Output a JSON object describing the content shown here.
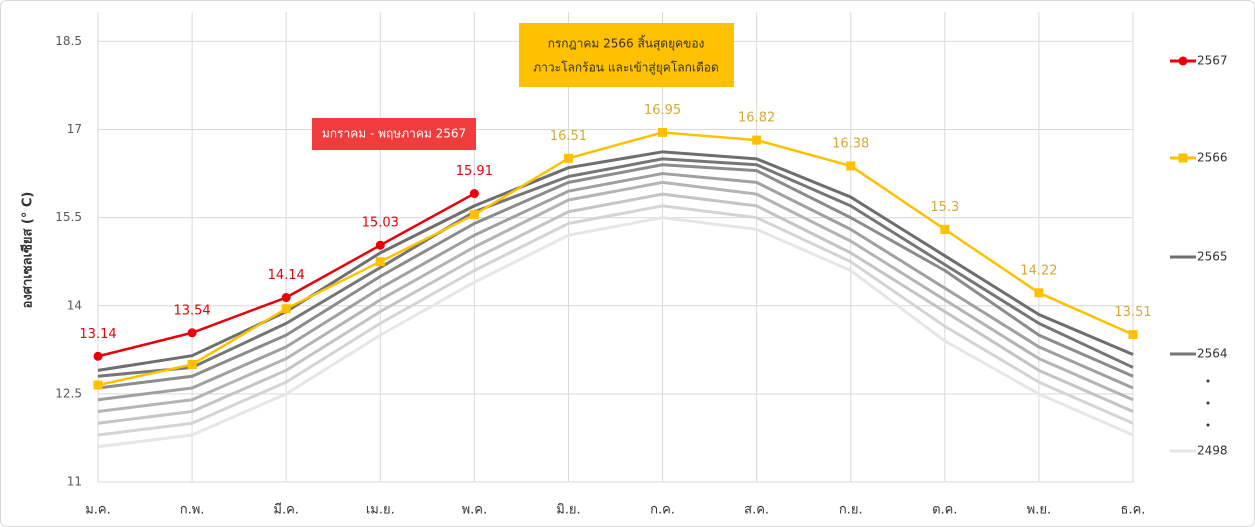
{
  "chart_data": {
    "type": "line",
    "y_label": "องศาเซลเซียส (° C)",
    "categories": [
      "ม.ค.",
      "ก.พ.",
      "มี.ค.",
      "เม.ย.",
      "พ.ค.",
      "มิ.ย.",
      "ก.ค.",
      "ส.ค.",
      "ก.ย.",
      "ต.ค.",
      "พ.ย.",
      "ธ.ค."
    ],
    "ylim": [
      11,
      19
    ],
    "yticks": [
      11,
      12.5,
      14,
      15.5,
      17,
      18.5
    ],
    "grid": true,
    "annotations": [
      {
        "lines": [
          "กรกฎาคม 2566 สิ้นสุดยุคของ",
          "ภาวะโลกร้อน และเข้าสู่ยุคโลกเดือด"
        ],
        "color": "#ffc000"
      },
      {
        "lines": [
          "มกราคม - พฤษภาคม 2567"
        ],
        "color": "#f03c3c"
      }
    ],
    "series": [
      {
        "name": "2567",
        "color": "#e8000b",
        "marker": "circle",
        "values": [
          13.14,
          13.54,
          14.14,
          15.03,
          15.91,
          null,
          null,
          null,
          null,
          null,
          null,
          null
        ],
        "value_labels": [
          "13.14",
          "13.54",
          "14.14",
          "15.03",
          "15.91",
          null,
          null,
          null,
          null,
          null,
          null,
          null
        ]
      },
      {
        "name": "2566",
        "color": "#ffc000",
        "marker": "square",
        "values": [
          12.65,
          13.0,
          13.95,
          14.75,
          15.55,
          16.51,
          16.95,
          16.82,
          16.38,
          15.3,
          14.22,
          13.51
        ],
        "value_labels": [
          null,
          null,
          null,
          null,
          null,
          "16.51",
          "16.95",
          "16.82",
          "16.38",
          "15.3",
          "14.22",
          "13.51"
        ]
      },
      {
        "name": "2565",
        "color": "#6e6e6e",
        "values": [
          12.9,
          13.15,
          13.9,
          14.9,
          15.7,
          16.35,
          16.62,
          16.5,
          15.85,
          14.85,
          13.85,
          13.17
        ]
      },
      {
        "name": "2564",
        "color": "#767676",
        "values": [
          12.8,
          12.95,
          13.7,
          14.65,
          15.6,
          16.2,
          16.5,
          16.4,
          15.7,
          14.7,
          13.7,
          12.95
        ]
      },
      {
        "name": "2498",
        "color": "#e6e6e6",
        "values": [
          11.6,
          11.8,
          12.5,
          13.5,
          14.4,
          15.2,
          15.5,
          15.3,
          14.6,
          13.4,
          12.5,
          11.8
        ]
      },
      {
        "color": "#8c8c8c",
        "values": [
          12.6,
          12.8,
          13.5,
          14.5,
          15.4,
          16.1,
          16.4,
          16.3,
          15.5,
          14.6,
          13.5,
          12.8
        ]
      },
      {
        "color": "#a0a0a0",
        "values": [
          12.4,
          12.6,
          13.3,
          14.3,
          15.2,
          15.95,
          16.25,
          16.1,
          15.3,
          14.3,
          13.3,
          12.6
        ]
      },
      {
        "color": "#b4b4b4",
        "values": [
          12.2,
          12.4,
          13.1,
          14.1,
          15.0,
          15.8,
          16.1,
          15.9,
          15.1,
          14.1,
          13.1,
          12.4
        ]
      },
      {
        "color": "#c4c4c4",
        "values": [
          12.0,
          12.2,
          12.9,
          13.9,
          14.8,
          15.6,
          15.9,
          15.7,
          14.9,
          13.9,
          12.9,
          12.2
        ]
      },
      {
        "color": "#d4d4d4",
        "values": [
          11.8,
          12.0,
          12.7,
          13.7,
          14.6,
          15.4,
          15.7,
          15.5,
          14.75,
          13.65,
          12.7,
          12.0
        ]
      }
    ]
  }
}
